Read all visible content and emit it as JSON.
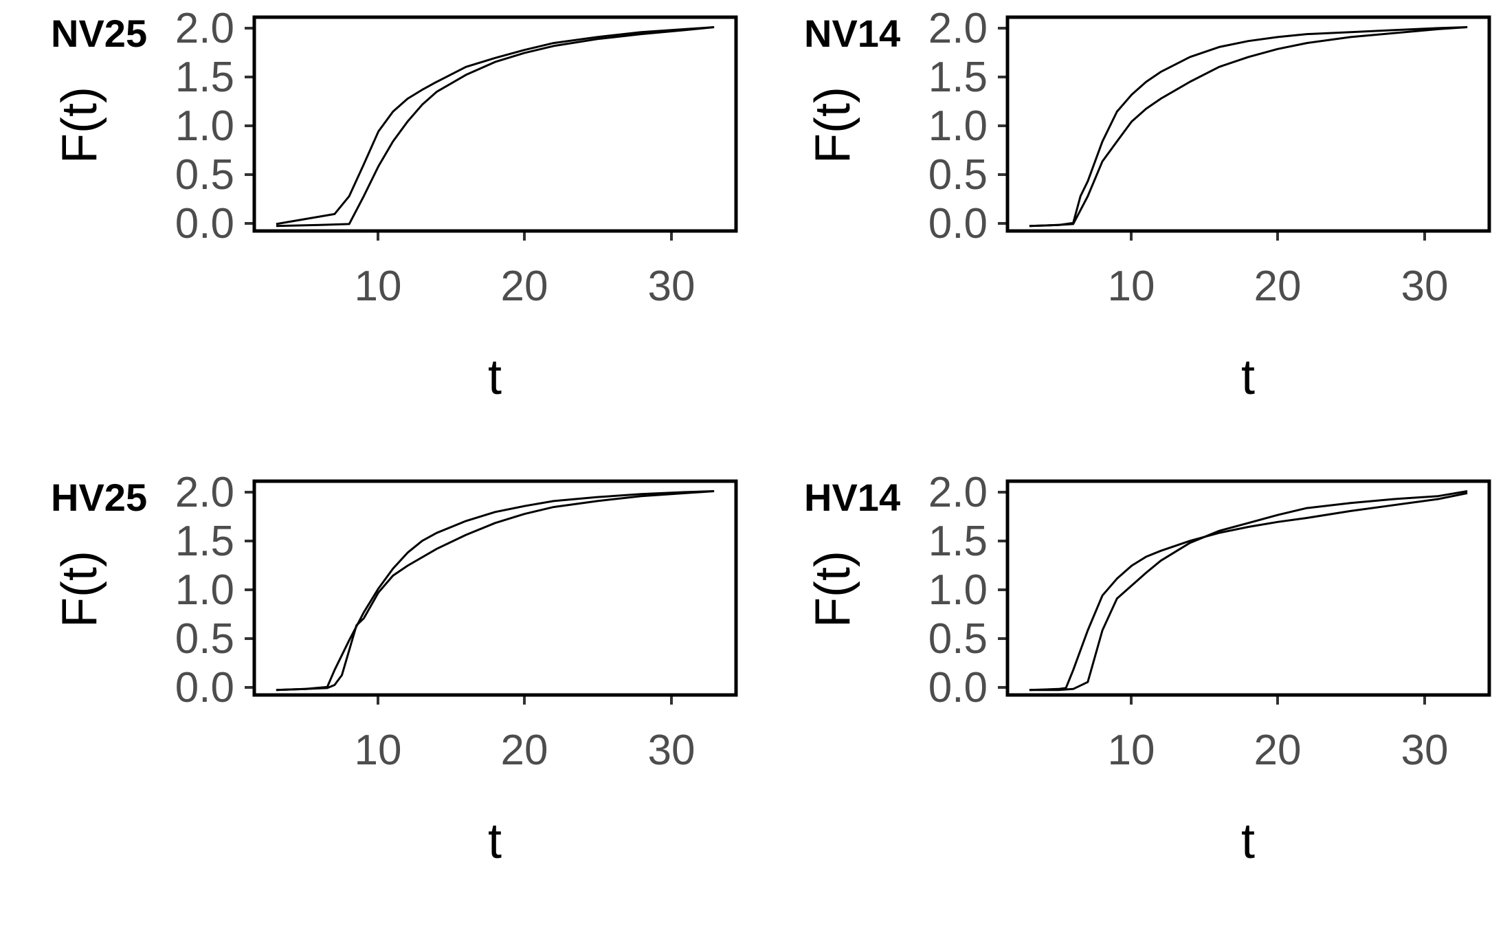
{
  "chart_data": [
    {
      "type": "line",
      "title": "NV25",
      "xlabel": "t",
      "ylabel": "F(t)",
      "xlim": [
        1.5,
        34.5
      ],
      "ylim": [
        -0.05,
        2.1
      ],
      "xticks": [
        "10",
        "20",
        "30"
      ],
      "yticks": [
        "0.0",
        "0.5",
        "1.0",
        "1.5",
        "2.0"
      ],
      "grid": false,
      "series": [
        {
          "x": [
            3,
            5,
            7,
            8,
            9,
            10,
            11,
            12,
            13,
            14,
            16,
            18,
            20,
            22,
            25,
            28,
            31,
            33
          ],
          "y": [
            0.02,
            0.07,
            0.12,
            0.3,
            0.62,
            0.95,
            1.15,
            1.28,
            1.37,
            1.45,
            1.6,
            1.69,
            1.77,
            1.84,
            1.9,
            1.95,
            1.98,
            2.0
          ]
        },
        {
          "x": [
            3,
            6,
            8,
            9,
            10,
            11,
            12,
            13,
            14,
            16,
            18,
            20,
            22,
            25,
            28,
            31,
            33
          ],
          "y": [
            0.0,
            0.01,
            0.02,
            0.3,
            0.6,
            0.85,
            1.05,
            1.22,
            1.35,
            1.52,
            1.65,
            1.74,
            1.81,
            1.88,
            1.93,
            1.97,
            2.0
          ]
        }
      ]
    },
    {
      "type": "line",
      "title": "NV14",
      "xlabel": "t",
      "ylabel": "F(t)",
      "xlim": [
        1.5,
        34.5
      ],
      "ylim": [
        -0.05,
        2.1
      ],
      "xticks": [
        "10",
        "20",
        "30"
      ],
      "yticks": [
        "0.0",
        "0.5",
        "1.0",
        "1.5",
        "2.0"
      ],
      "grid": false,
      "series": [
        {
          "x": [
            3,
            5,
            6,
            6.5,
            7,
            8,
            9,
            10,
            11,
            12,
            14,
            16,
            18,
            20,
            22,
            25,
            28,
            31,
            33
          ],
          "y": [
            0.0,
            0.01,
            0.03,
            0.3,
            0.45,
            0.85,
            1.15,
            1.32,
            1.45,
            1.55,
            1.7,
            1.8,
            1.86,
            1.9,
            1.93,
            1.95,
            1.97,
            1.99,
            2.0
          ]
        },
        {
          "x": [
            3,
            5,
            6,
            7,
            8,
            9,
            10,
            11,
            12,
            14,
            16,
            18,
            20,
            22,
            25,
            28,
            31,
            33
          ],
          "y": [
            0.0,
            0.01,
            0.02,
            0.3,
            0.65,
            0.85,
            1.05,
            1.18,
            1.28,
            1.45,
            1.6,
            1.7,
            1.78,
            1.84,
            1.9,
            1.94,
            1.98,
            2.0
          ]
        }
      ]
    },
    {
      "type": "line",
      "title": "HV25",
      "xlabel": "t",
      "ylabel": "F(t)",
      "xlim": [
        1.5,
        34.5
      ],
      "ylim": [
        -0.05,
        2.1
      ],
      "xticks": [
        "10",
        "20",
        "30"
      ],
      "yticks": [
        "0.0",
        "0.5",
        "1.0",
        "1.5",
        "2.0"
      ],
      "grid": false,
      "series": [
        {
          "x": [
            3,
            5,
            6.5,
            7,
            8,
            9,
            10,
            11,
            12,
            13,
            14,
            16,
            18,
            20,
            22,
            25,
            28,
            31,
            33
          ],
          "y": [
            0.0,
            0.01,
            0.03,
            0.2,
            0.5,
            0.78,
            1.02,
            1.22,
            1.38,
            1.5,
            1.58,
            1.7,
            1.79,
            1.85,
            1.9,
            1.94,
            1.97,
            1.99,
            2.0
          ]
        },
        {
          "x": [
            3,
            5,
            6.5,
            7,
            7.5,
            8,
            8.5,
            9,
            10,
            11,
            12,
            14,
            16,
            18,
            20,
            22,
            25,
            28,
            31,
            33
          ],
          "y": [
            0.0,
            0.01,
            0.02,
            0.05,
            0.15,
            0.4,
            0.65,
            0.72,
            0.98,
            1.15,
            1.25,
            1.42,
            1.56,
            1.68,
            1.77,
            1.84,
            1.9,
            1.95,
            1.98,
            2.0
          ]
        }
      ]
    },
    {
      "type": "line",
      "title": "HV14",
      "xlabel": "t",
      "ylabel": "F(t)",
      "xlim": [
        1.5,
        34.5
      ],
      "ylim": [
        -0.05,
        2.1
      ],
      "xticks": [
        "10",
        "20",
        "30"
      ],
      "yticks": [
        "0.0",
        "0.5",
        "1.0",
        "1.5",
        "2.0"
      ],
      "grid": false,
      "series": [
        {
          "x": [
            3,
            5,
            5.5,
            6,
            7,
            8,
            9,
            10,
            11,
            12,
            14,
            16,
            18,
            20,
            22,
            25,
            28,
            31,
            33
          ],
          "y": [
            0.0,
            0.01,
            0.02,
            0.2,
            0.6,
            0.95,
            1.12,
            1.25,
            1.34,
            1.4,
            1.5,
            1.58,
            1.64,
            1.69,
            1.73,
            1.8,
            1.86,
            1.92,
            1.98
          ]
        },
        {
          "x": [
            3,
            5,
            6,
            7,
            8,
            9,
            10,
            11,
            12,
            14,
            16,
            18,
            20,
            22,
            25,
            28,
            31,
            33
          ],
          "y": [
            0.0,
            0.0,
            0.01,
            0.08,
            0.6,
            0.92,
            1.05,
            1.18,
            1.3,
            1.48,
            1.6,
            1.68,
            1.76,
            1.83,
            1.88,
            1.92,
            1.95,
            2.0
          ]
        }
      ]
    }
  ]
}
